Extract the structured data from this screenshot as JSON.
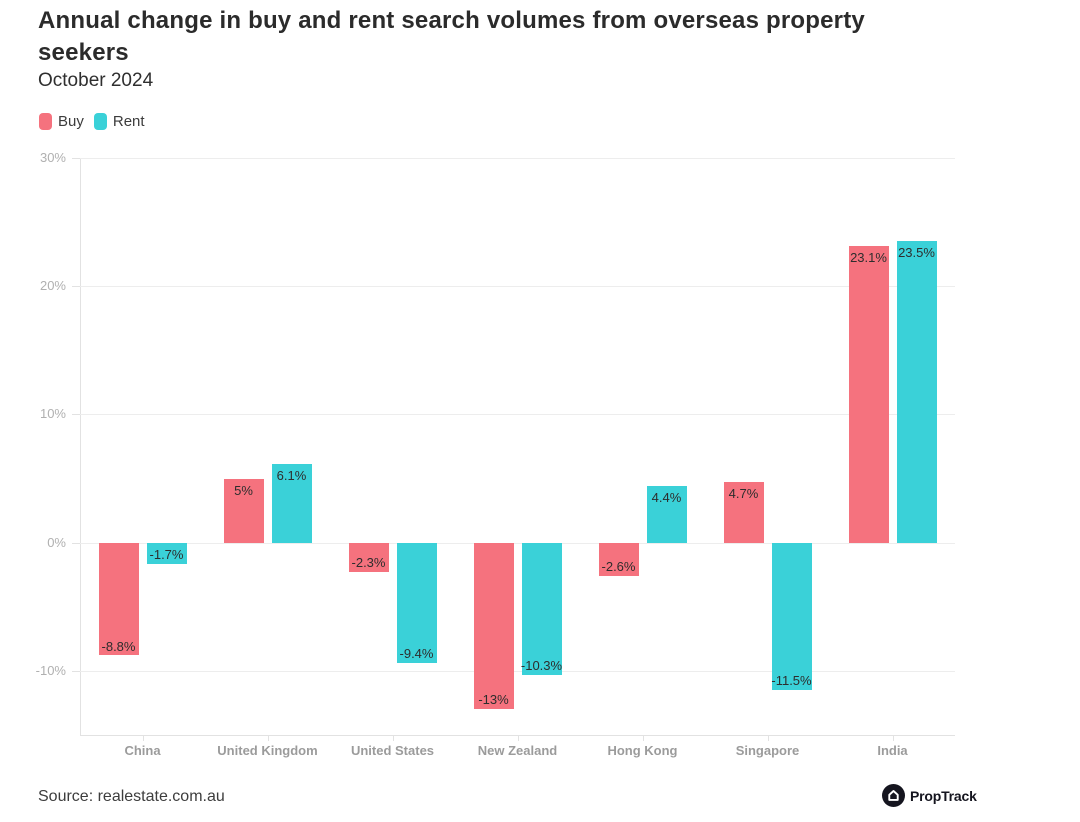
{
  "header": {
    "title": "Annual change in buy and rent search volumes from overseas property seekers",
    "subtitle": "October 2024"
  },
  "legend": [
    {
      "label": "Buy",
      "color": "#F5727E"
    },
    {
      "label": "Rent",
      "color": "#3AD1D8"
    }
  ],
  "chart_data": {
    "type": "bar",
    "title": "Annual change in buy and rent search volumes from overseas property seekers",
    "subtitle": "October 2024",
    "categories": [
      "China",
      "United Kingdom",
      "United States",
      "New Zealand",
      "Hong Kong",
      "Singapore",
      "India"
    ],
    "series": [
      {
        "name": "Buy",
        "color": "#F5727E",
        "values": [
          -8.8,
          5,
          -2.3,
          -13,
          -2.6,
          4.7,
          23.1
        ],
        "data_labels": [
          "-8.8%",
          "5%",
          "-2.3%",
          "-13%",
          "-2.6%",
          "4.7%",
          "23.1%"
        ]
      },
      {
        "name": "Rent",
        "color": "#3AD1D8",
        "values": [
          -1.7,
          6.1,
          -9.4,
          -10.3,
          4.4,
          -11.5,
          23.5
        ],
        "data_labels": [
          "-1.7%",
          "6.1%",
          "-9.4%",
          "-10.3%",
          "4.4%",
          "-11.5%",
          "23.5%"
        ]
      }
    ],
    "xlabel": "",
    "ylabel": "",
    "ylim": [
      -15,
      30
    ],
    "yticks": [
      {
        "value": 30,
        "label": "30%"
      },
      {
        "value": 20,
        "label": "20%"
      },
      {
        "value": 10,
        "label": "10%"
      },
      {
        "value": 0,
        "label": "0%"
      },
      {
        "value": -10,
        "label": "-10%"
      }
    ],
    "grid": true,
    "legend_position": "top-left"
  },
  "footer": {
    "source": "Source: realestate.com.au",
    "brand": "PropTrack"
  }
}
